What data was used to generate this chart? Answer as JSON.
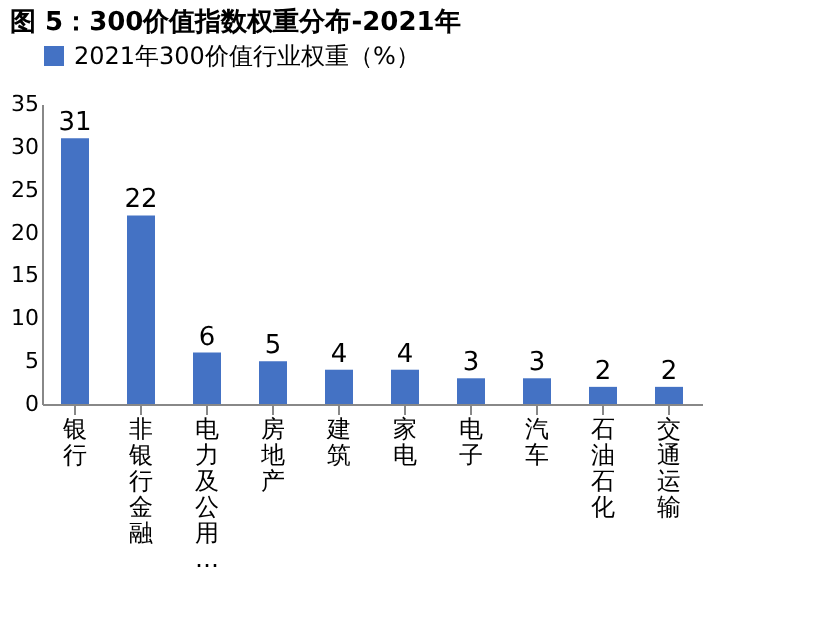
{
  "chart_data": {
    "type": "bar",
    "title": "图 5：300价值指数权重分布-2021年",
    "categories": [
      "银行",
      "非银行金融",
      "电力及公用…",
      "房地产",
      "建筑",
      "家电",
      "电子",
      "汽车",
      "石油石化",
      "交通运输"
    ],
    "series": [
      {
        "name": "2021年300价值行业权重（%）",
        "color": "#4472c4",
        "values": [
          31,
          22,
          6,
          5,
          4,
          4,
          3,
          3,
          2,
          2
        ]
      }
    ],
    "ylim": [
      0,
      35
    ],
    "yticks": [
      0,
      5,
      10,
      15,
      20,
      25,
      30,
      35
    ],
    "data_labels": true,
    "legend": "top",
    "grid": false
  }
}
